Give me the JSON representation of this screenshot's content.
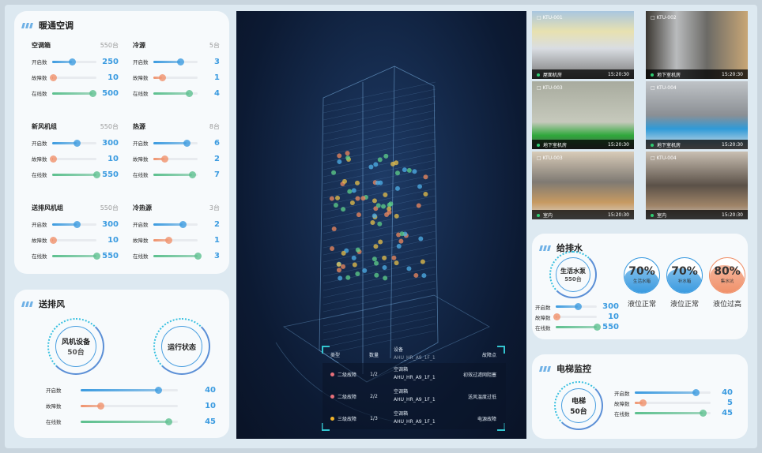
{
  "hvac": {
    "title": "暖通空调",
    "groups": [
      {
        "name": "空调箱",
        "total": "550台",
        "max": 550,
        "rows": [
          {
            "label": "开启数",
            "value": 250
          },
          {
            "label": "故障数",
            "value": 10
          },
          {
            "label": "在线数",
            "value": 500
          }
        ]
      },
      {
        "name": "冷源",
        "total": "5台",
        "max": 5,
        "rows": [
          {
            "label": "开启数",
            "value": 3
          },
          {
            "label": "故障数",
            "value": 1
          },
          {
            "label": "在线数",
            "value": 4
          }
        ]
      },
      {
        "name": "新风机组",
        "total": "550台",
        "max": 550,
        "rows": [
          {
            "label": "开启数",
            "value": 300
          },
          {
            "label": "故障数",
            "value": 10
          },
          {
            "label": "在线数",
            "value": 550
          }
        ]
      },
      {
        "name": "热源",
        "total": "8台",
        "max": 8,
        "rows": [
          {
            "label": "开启数",
            "value": 6
          },
          {
            "label": "故障数",
            "value": 2
          },
          {
            "label": "在线数",
            "value": 7
          }
        ]
      },
      {
        "name": "送排风机组",
        "total": "550台",
        "max": 550,
        "rows": [
          {
            "label": "开启数",
            "value": 300
          },
          {
            "label": "故障数",
            "value": 10
          },
          {
            "label": "在线数",
            "value": 550
          }
        ]
      },
      {
        "name": "冷热源",
        "total": "3台",
        "max": 3,
        "rows": [
          {
            "label": "开启数",
            "value": 2
          },
          {
            "label": "故障数",
            "value": 1
          },
          {
            "label": "在线数",
            "value": 3
          }
        ]
      }
    ]
  },
  "ventilation": {
    "title": "送排风",
    "device_label": "风机设备",
    "device_count": "50台",
    "status_label": "运行状态",
    "max": 50,
    "rows": [
      {
        "label": "开启数",
        "value": 40
      },
      {
        "label": "故障数",
        "value": 10
      },
      {
        "label": "在线数",
        "value": 45
      }
    ]
  },
  "faults": {
    "headers": [
      "类型",
      "数量",
      "设备",
      "故障点"
    ],
    "clipped_device": "AHU_HR_A9_1F_1",
    "rows": [
      {
        "type": "二级故障",
        "color": "#e8707a",
        "count": "1/2",
        "device_name": "空调箱",
        "device_id": "AHU_HR_A9_1F_1",
        "point": "初效过滤网阻塞"
      },
      {
        "type": "二级故障",
        "color": "#e8707a",
        "count": "2/2",
        "device_name": "空调箱",
        "device_id": "AHU_HR_A9_1F_1",
        "point": "送风温度过低"
      },
      {
        "type": "三级故障",
        "color": "#f2b32a",
        "count": "1/3",
        "device_name": "空调箱",
        "device_id": "AHU_HR_A9_1F_1",
        "point": "电源故障"
      }
    ]
  },
  "cameras": [
    {
      "id": "KTU-001",
      "location": "屋面机房",
      "time": "15:20:30"
    },
    {
      "id": "KTU-002",
      "location": "地下室机房",
      "time": "15:20:30"
    },
    {
      "id": "KTU-003",
      "location": "地下室机房",
      "time": "15:20:30"
    },
    {
      "id": "KTU-004",
      "location": "地下室机房",
      "time": "15:20:30"
    },
    {
      "id": "KTU-003",
      "location": "室内",
      "time": "15:20:30"
    },
    {
      "id": "KTU-004",
      "location": "室内",
      "time": "15:20:30"
    }
  ],
  "water": {
    "title": "给排水",
    "device_label": "生活水泵",
    "device_count": "550台",
    "max": 550,
    "rows": [
      {
        "label": "开启数",
        "value": 300
      },
      {
        "label": "故障数",
        "value": 10
      },
      {
        "label": "在线数",
        "value": 550
      }
    ],
    "tanks": [
      {
        "percent": "70%",
        "level": 0.7,
        "name": "生活水箱",
        "status": "液位正常",
        "color": "#3b9be0"
      },
      {
        "percent": "70%",
        "level": 0.7,
        "name": "补水箱",
        "status": "液位正常",
        "color": "#3b9be0"
      },
      {
        "percent": "80%",
        "level": 0.8,
        "name": "集水坑",
        "status": "液位过高",
        "color": "#f0916a"
      }
    ]
  },
  "elevator": {
    "title": "电梯监控",
    "device_label": "电梯",
    "device_count": "50台",
    "max": 50,
    "rows": [
      {
        "label": "开启数",
        "value": 40
      },
      {
        "label": "故障数",
        "value": 5
      },
      {
        "label": "在线数",
        "value": 45
      }
    ]
  },
  "colors": {
    "open": "#3b9be0",
    "fault": "#f0916a",
    "online": "#5cc08e"
  }
}
